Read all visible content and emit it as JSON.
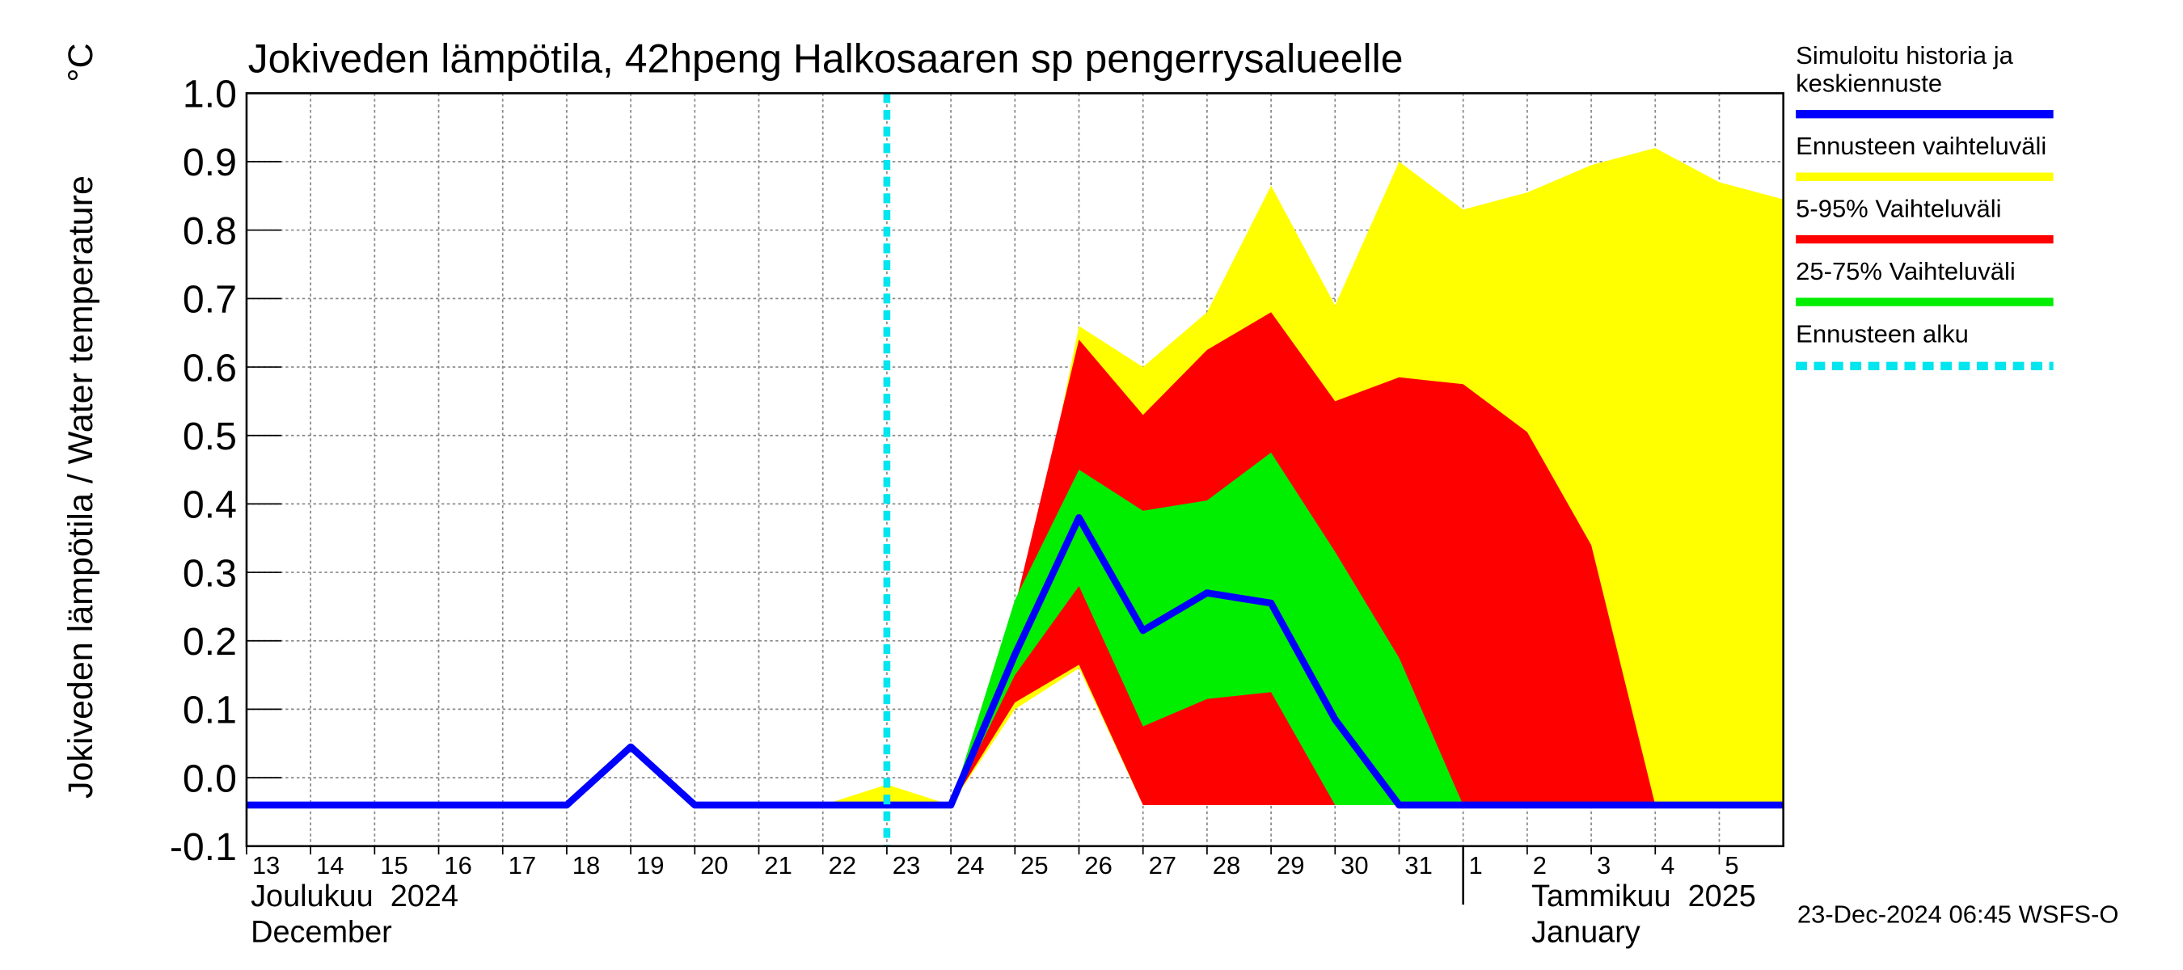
{
  "chart_data": {
    "type": "band-line",
    "title": "Jokiveden lämpötila, 42hpeng Halkosaaren sp pengerrysalueelle",
    "y_label": "Jokiveden lämpötila / Water temperature",
    "y_unit": "°C",
    "timestamp": "23-Dec-2024 06:45 WSFS-O",
    "month_labels": [
      [
        "Joulukuu  2024",
        "December"
      ],
      [
        "Tammikuu  2025",
        "January"
      ]
    ],
    "month_start": "2025-01-01",
    "grid": true,
    "xlim": [
      "2024-12-13",
      "2025-01-06"
    ],
    "ylim": [
      -0.1,
      1.0
    ],
    "yticks": [
      {
        "value": -0.1,
        "label": "-0.1"
      },
      {
        "value": 0.0,
        "label": "0.0"
      },
      0.1,
      0.2,
      0.3,
      0.4,
      0.5,
      0.6,
      0.7,
      0.8,
      0.9,
      {
        "value": 1.0,
        "label": "1.0"
      }
    ],
    "xticks": [
      {
        "value": "2024-12-13",
        "label": "13"
      },
      {
        "value": "2024-12-14",
        "label": "14"
      },
      {
        "value": "2024-12-15",
        "label": "15"
      },
      {
        "value": "2024-12-16",
        "label": "16"
      },
      {
        "value": "2024-12-17",
        "label": "17"
      },
      {
        "value": "2024-12-18",
        "label": "18"
      },
      {
        "value": "2024-12-19",
        "label": "19"
      },
      {
        "value": "2024-12-20",
        "label": "20"
      },
      {
        "value": "2024-12-21",
        "label": "21"
      },
      {
        "value": "2024-12-22",
        "label": "22"
      },
      {
        "value": "2024-12-23",
        "label": "23"
      },
      {
        "value": "2024-12-24",
        "label": "24"
      },
      {
        "value": "2024-12-25",
        "label": "25"
      },
      {
        "value": "2024-12-26",
        "label": "26"
      },
      {
        "value": "2024-12-27",
        "label": "27"
      },
      {
        "value": "2024-12-28",
        "label": "28"
      },
      {
        "value": "2024-12-29",
        "label": "29"
      },
      {
        "value": "2024-12-30",
        "label": "30"
      },
      {
        "value": "2024-12-31",
        "label": "31"
      },
      {
        "value": "2025-01-01",
        "label": "1"
      },
      {
        "value": "2025-01-02",
        "label": "2"
      },
      {
        "value": "2025-01-03",
        "label": "3"
      },
      {
        "value": "2025-01-04",
        "label": "4"
      },
      {
        "value": "2025-01-05",
        "label": "5"
      }
    ],
    "x": [
      "2024-12-13",
      "2024-12-14",
      "2024-12-15",
      "2024-12-16",
      "2024-12-17",
      "2024-12-18",
      "2024-12-19",
      "2024-12-20",
      "2024-12-21",
      "2024-12-22",
      "2024-12-23",
      "2024-12-24",
      "2024-12-25",
      "2024-12-26",
      "2024-12-27",
      "2024-12-28",
      "2024-12-29",
      "2024-12-30",
      "2024-12-31",
      "2025-01-01",
      "2025-01-02",
      "2025-01-03",
      "2025-01-04",
      "2025-01-05",
      "2025-01-06"
    ],
    "series": [
      {
        "name": "Simuloitu historia ja keskiennuste",
        "color": "#0000ff",
        "kind": "line",
        "values": [
          -0.04,
          -0.04,
          -0.04,
          -0.04,
          -0.04,
          -0.04,
          0.045,
          -0.04,
          -0.04,
          -0.04,
          -0.04,
          -0.04,
          0.18,
          0.38,
          0.215,
          0.27,
          0.255,
          0.085,
          -0.04,
          -0.04,
          -0.04,
          -0.04,
          -0.04,
          -0.04,
          -0.04
        ]
      },
      {
        "name": "Ennusteen vaihteluväli",
        "color": "#ffff00",
        "kind": "band",
        "upper": [
          null,
          null,
          null,
          null,
          null,
          null,
          null,
          null,
          null,
          -0.04,
          -0.01,
          -0.04,
          0.2,
          0.66,
          0.6,
          0.68,
          0.865,
          0.69,
          0.9,
          0.83,
          0.855,
          0.895,
          0.92,
          0.87,
          0.845
        ],
        "lower": [
          null,
          null,
          null,
          null,
          null,
          null,
          null,
          null,
          null,
          -0.04,
          -0.04,
          -0.04,
          0.1,
          0.16,
          -0.04,
          -0.04,
          -0.035,
          -0.04,
          -0.04,
          -0.04,
          -0.04,
          -0.04,
          -0.04,
          -0.04,
          -0.04
        ]
      },
      {
        "name": "5-95% Vaihteluväli",
        "color": "#ff0000",
        "kind": "band",
        "upper": [
          null,
          null,
          null,
          null,
          null,
          null,
          null,
          null,
          null,
          null,
          null,
          -0.04,
          0.25,
          0.64,
          0.53,
          0.625,
          0.68,
          0.55,
          0.585,
          0.575,
          0.505,
          0.34,
          -0.04,
          -0.04,
          -0.04
        ],
        "lower": [
          null,
          null,
          null,
          null,
          null,
          null,
          null,
          null,
          null,
          null,
          null,
          -0.04,
          0.11,
          0.165,
          -0.04,
          -0.04,
          -0.04,
          -0.04,
          -0.04,
          -0.04,
          -0.04,
          -0.04,
          -0.04,
          -0.04,
          -0.04
        ]
      },
      {
        "name": "25-75% Vaihteluväli",
        "color": "#00ee00",
        "kind": "band",
        "upper": [
          null,
          null,
          null,
          null,
          null,
          null,
          null,
          null,
          null,
          null,
          null,
          -0.04,
          0.26,
          0.45,
          0.39,
          0.405,
          0.475,
          0.33,
          0.175,
          -0.04,
          -0.04,
          -0.04,
          -0.04,
          -0.04,
          -0.04
        ],
        "lower": [
          null,
          null,
          null,
          null,
          null,
          null,
          null,
          null,
          null,
          null,
          null,
          -0.04,
          0.15,
          0.28,
          0.075,
          0.115,
          0.125,
          -0.04,
          -0.04,
          -0.04,
          -0.04,
          -0.04,
          -0.04,
          -0.04,
          -0.04
        ]
      }
    ],
    "forecast_start": {
      "name": "Ennusteen alku",
      "x": "2024-12-23",
      "color": "#00e5ee"
    }
  }
}
